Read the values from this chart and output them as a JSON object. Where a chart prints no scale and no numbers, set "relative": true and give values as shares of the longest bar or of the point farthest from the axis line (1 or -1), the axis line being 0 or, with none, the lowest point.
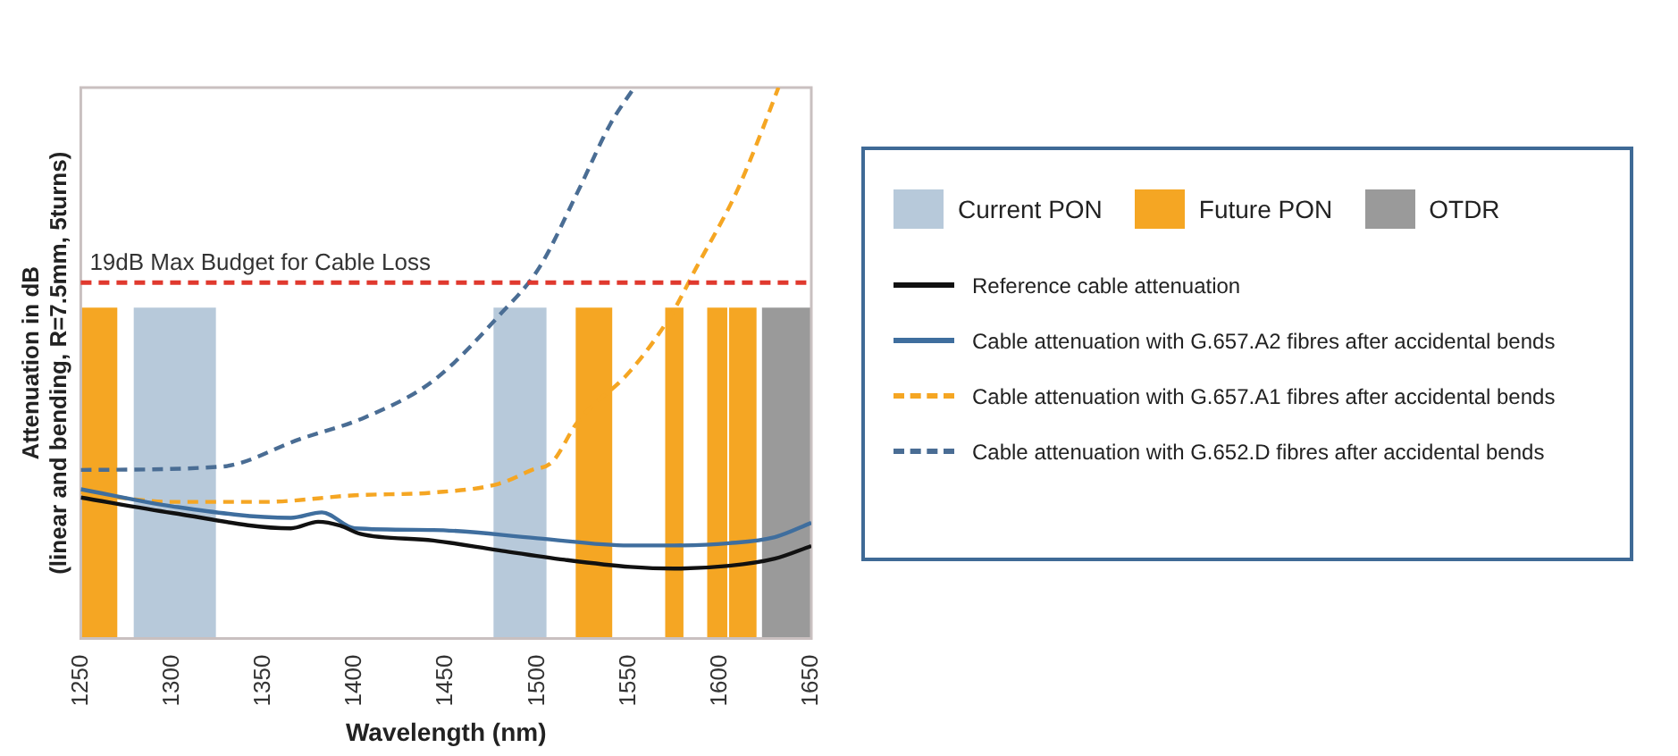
{
  "chart_data": {
    "type": "line",
    "relative": true,
    "xlabel": "Wavelength (nm)",
    "ylabel": "Attenuation in dB\n(linear and bending, R=7.5mm, 5turns)",
    "xlim": [
      1250,
      1650
    ],
    "xticks": [
      1250,
      1300,
      1350,
      1400,
      1450,
      1500,
      1550,
      1600,
      1650
    ],
    "grid": false,
    "legend": "right",
    "marker": "none",
    "series": [
      {
        "name": "Reference cable attenuation",
        "color": "#111111",
        "line_style": "solid",
        "x": [
          1250,
          1300,
          1365,
          1380,
          1392,
          1403,
          1443,
          1479,
          1515,
          1551,
          1575,
          1605,
          1630,
          1650
        ],
        "values": [
          0.256,
          0.228,
          0.2,
          0.212,
          0.205,
          0.19,
          0.178,
          0.16,
          0.143,
          0.13,
          0.127,
          0.132,
          0.145,
          0.168
        ]
      },
      {
        "name": "Cable attenuation with G.657.A2 fibres after accidental bends",
        "color": "#3f6e9e",
        "line_style": "solid",
        "x": [
          1250,
          1300,
          1365,
          1382,
          1400,
          1443,
          1500,
          1550,
          1575,
          1605,
          1630,
          1650
        ],
        "values": [
          0.271,
          0.24,
          0.219,
          0.229,
          0.2,
          0.197,
          0.182,
          0.169,
          0.169,
          0.173,
          0.184,
          0.21
        ]
      },
      {
        "name": "Cable attenuation with G.657.A1 fibres after accidental bends",
        "color": "#f5a623",
        "line_style": "dashed",
        "x": [
          1250,
          1300,
          1350,
          1400,
          1443,
          1479,
          1497,
          1508,
          1522,
          1551,
          1573,
          1587,
          1609,
          1623,
          1632
        ],
        "values": [
          0.265,
          0.248,
          0.248,
          0.26,
          0.265,
          0.281,
          0.306,
          0.32,
          0.393,
          0.486,
          0.586,
          0.673,
          0.81,
          0.922,
          1
        ]
      },
      {
        "name": "Cable attenuation with G.652.D fibres after accidental bends",
        "color": "#4a6d94",
        "line_style": "dashed",
        "x": [
          1250,
          1327,
          1370,
          1406,
          1443,
          1479,
          1501,
          1522,
          1540,
          1553
        ],
        "values": [
          0.306,
          0.312,
          0.362,
          0.402,
          0.468,
          0.586,
          0.673,
          0.81,
          0.934,
          1
        ]
      }
    ],
    "ref_lines": [
      {
        "axis": "y",
        "value": 0.646,
        "label": "19dB Max Budget for Cable Loss",
        "color": "#e0392e",
        "line_style": "dashed"
      }
    ],
    "bands": [
      {
        "axis": "x",
        "from": 1250,
        "to": 1270,
        "color": "#f5a623"
      },
      {
        "axis": "x",
        "from": 1279,
        "to": 1324,
        "label": "Current PON",
        "color": "#b7c9da"
      },
      {
        "axis": "x",
        "from": 1476,
        "to": 1505,
        "color": "#b7c9da"
      },
      {
        "axis": "x",
        "from": 1521,
        "to": 1541,
        "label": "Future PON",
        "color": "#f5a623"
      },
      {
        "axis": "x",
        "from": 1570,
        "to": 1580,
        "color": "#f5a623"
      },
      {
        "axis": "x",
        "from": 1593,
        "to": 1604,
        "color": "#f5a623"
      },
      {
        "axis": "x",
        "from": 1605,
        "to": 1620,
        "color": "#f5a623"
      },
      {
        "axis": "x",
        "from": 1623,
        "to": 1650,
        "label": "OTDR",
        "color": "#9a9a9a"
      }
    ]
  }
}
